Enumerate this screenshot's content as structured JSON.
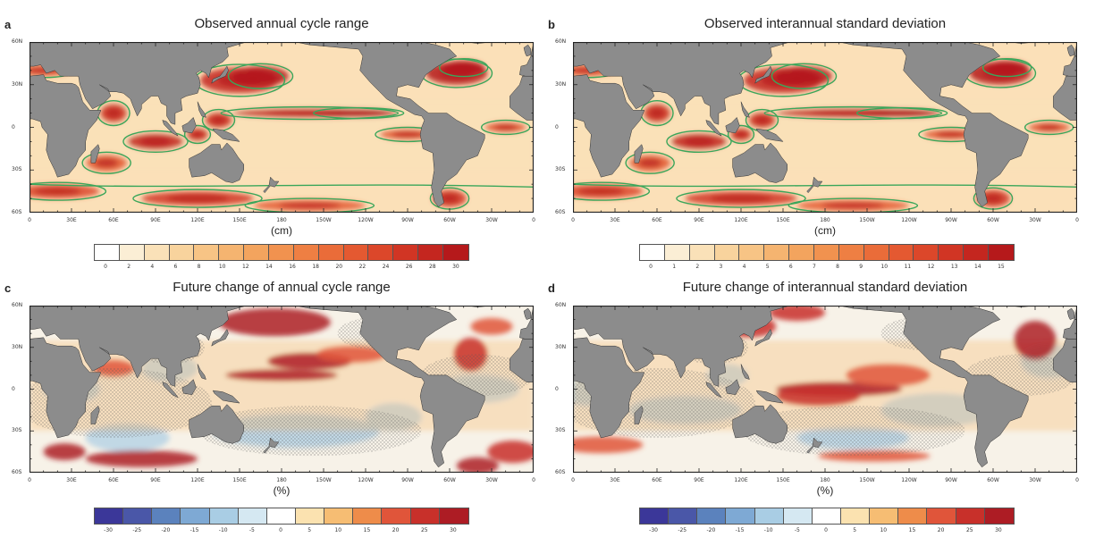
{
  "panels": [
    {
      "letter": "a",
      "title": "Observed annual cycle range",
      "unit": "(cm)",
      "colorbar_labels": [
        "0",
        "2",
        "4",
        "6",
        "8",
        "10",
        "12",
        "14",
        "16",
        "18",
        "20",
        "22",
        "24",
        "26",
        "28",
        "30"
      ],
      "colorbar_colors": [
        "#ffffff",
        "#fbeed5",
        "#fae1b8",
        "#f8d39d",
        "#f7c485",
        "#f5b470",
        "#f3a45e",
        "#f1924f",
        "#ee7f43",
        "#ea6c39",
        "#e45931",
        "#dc472a",
        "#d13524",
        "#c4261f",
        "#b5191b"
      ],
      "style": "observed"
    },
    {
      "letter": "b",
      "title": "Observed interannual standard deviation",
      "unit": "(cm)",
      "colorbar_labels": [
        "0",
        "1",
        "2",
        "3",
        "4",
        "5",
        "6",
        "7",
        "8",
        "9",
        "10",
        "11",
        "12",
        "13",
        "14",
        "15"
      ],
      "colorbar_colors": [
        "#ffffff",
        "#fbeed5",
        "#fae1b8",
        "#f8d39d",
        "#f7c485",
        "#f5b470",
        "#f3a45e",
        "#f1924f",
        "#ee7f43",
        "#ea6c39",
        "#e45931",
        "#dc472a",
        "#d13524",
        "#c4261f",
        "#b5191b"
      ],
      "style": "observed"
    },
    {
      "letter": "c",
      "title": "Future change of annual cycle range",
      "unit": "(%)",
      "colorbar_labels": [
        "-30",
        "-25",
        "-20",
        "-15",
        "-10",
        "-5",
        "0",
        "5",
        "10",
        "15",
        "20",
        "25",
        "30"
      ],
      "colorbar_colors": [
        "#3b3799",
        "#4a57a8",
        "#5b82bd",
        "#7ea9d4",
        "#a9cde4",
        "#d5e8f2",
        "#ffffff",
        "#fbe2b0",
        "#f6bd73",
        "#ee8c4a",
        "#e0553a",
        "#c8302a",
        "#ad1c24"
      ],
      "style": "change"
    },
    {
      "letter": "d",
      "title": "Future change of interannual standard deviation",
      "unit": "(%)",
      "colorbar_labels": [
        "-30",
        "-25",
        "-20",
        "-15",
        "-10",
        "-5",
        "0",
        "5",
        "10",
        "15",
        "20",
        "25",
        "30"
      ],
      "colorbar_colors": [
        "#3b3799",
        "#4a57a8",
        "#5b82bd",
        "#7ea9d4",
        "#a9cde4",
        "#d5e8f2",
        "#ffffff",
        "#fbe2b0",
        "#f6bd73",
        "#ee8c4a",
        "#e0553a",
        "#c8302a",
        "#ad1c24"
      ],
      "style": "change"
    }
  ],
  "lat_ticks": [
    "60N",
    "30N",
    "0",
    "30S",
    "60S"
  ],
  "lon_ticks": [
    "0",
    "30E",
    "60E",
    "90E",
    "120E",
    "150E",
    "180",
    "150W",
    "120W",
    "90W",
    "60W",
    "30W",
    "0"
  ],
  "colors": {
    "land": "#8c8c8c",
    "contour": "#3aa65a",
    "ocean_base_observed": "#fbe0b8",
    "ocean_base_change": "#f7f2e8"
  }
}
